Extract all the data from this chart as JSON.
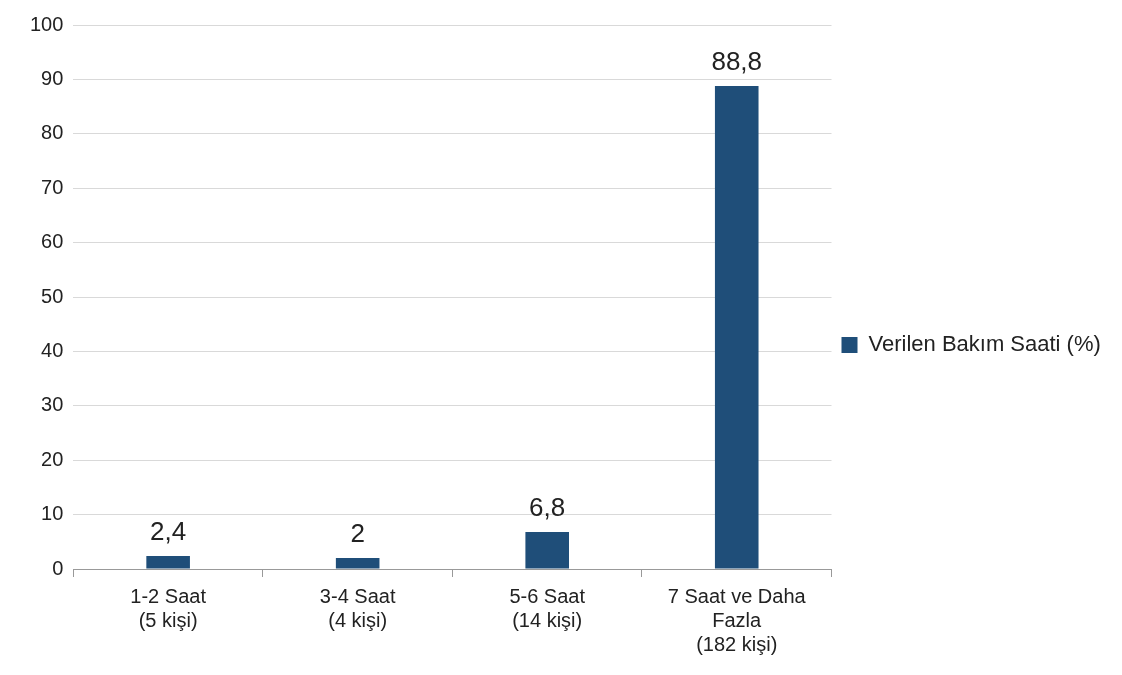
{
  "chart_data": {
    "type": "bar",
    "categories": [
      "1-2 Saat (5 kişi)",
      "3-4 Saat (4 kişi)",
      "5-6 Saat (14 kişi)",
      "7 Saat ve Daha Fazla (182 kişi)"
    ],
    "series": [
      {
        "name": "Verilen Bakım Saati (%)",
        "color": "#1f4e79",
        "values": [
          2.4,
          2,
          6.8,
          88.8
        ],
        "value_labels": [
          "2,4",
          "2",
          "6,8",
          "88,8"
        ]
      }
    ],
    "ylim": [
      0,
      100
    ],
    "yticks": [
      0,
      10,
      20,
      30,
      40,
      50,
      60,
      70,
      80,
      90,
      100
    ],
    "grid": "y",
    "legend": "right"
  }
}
